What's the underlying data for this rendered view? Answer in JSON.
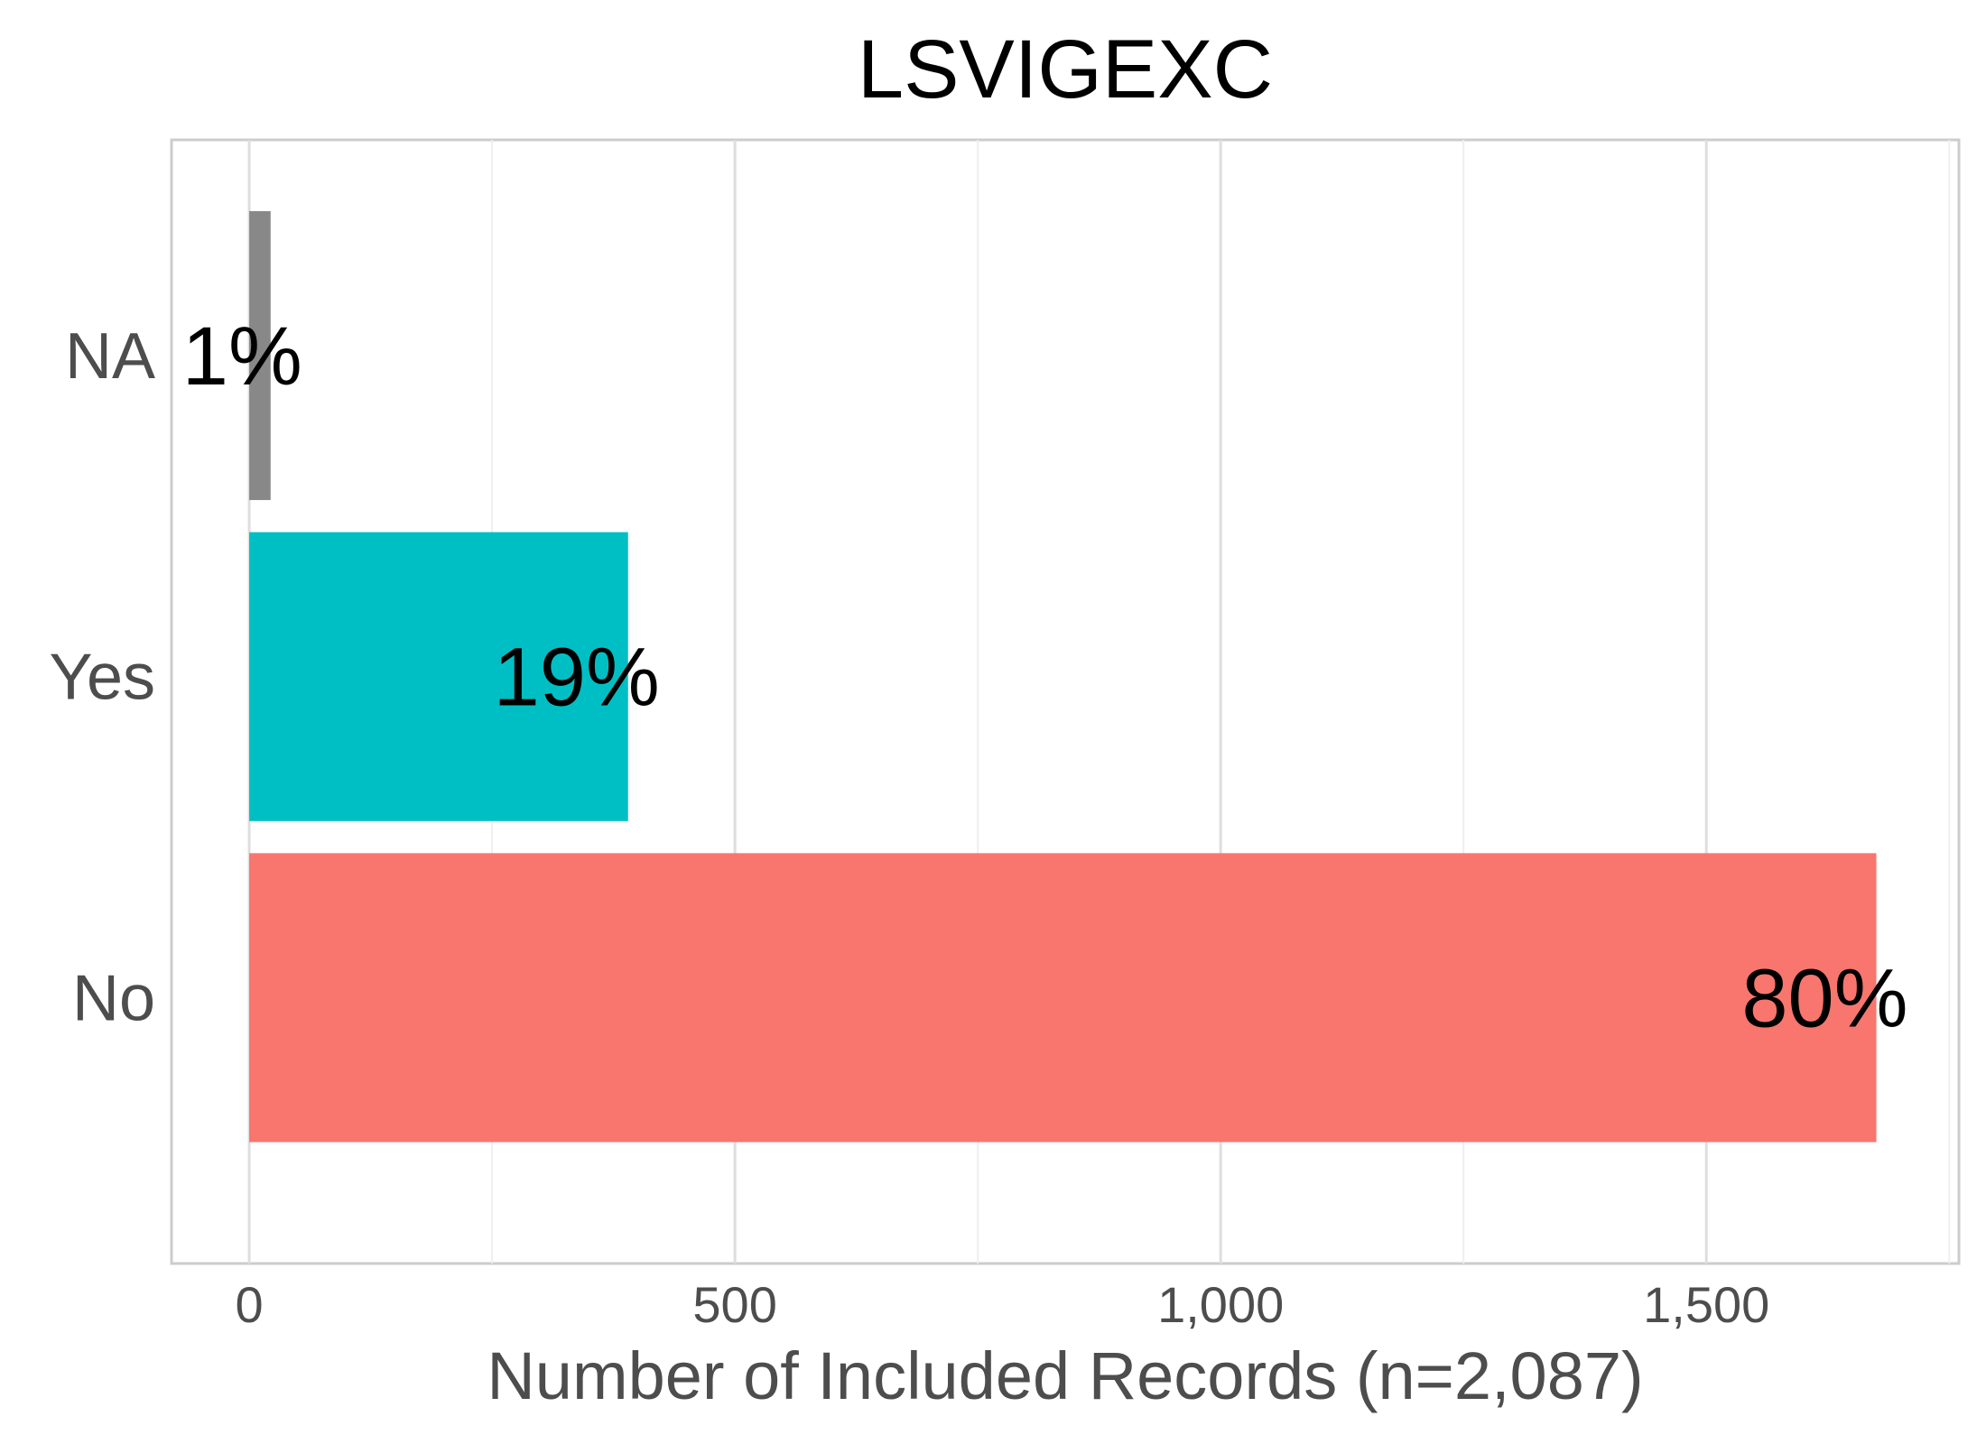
{
  "chart_data": {
    "type": "bar",
    "orientation": "horizontal",
    "title": "LSVIGEXC",
    "xlabel": "Number of Included Records (n=2,087)",
    "ylabel": "",
    "categories": [
      "No",
      "Yes",
      "NA"
    ],
    "values": [
      1675,
      390,
      22
    ],
    "labels": [
      "80%",
      "19%",
      "1%"
    ],
    "colors": [
      "#F8766D",
      "#00BFC4",
      "#888888"
    ],
    "xlim": [
      -80,
      1760
    ],
    "xticks": [
      0,
      500,
      1000,
      1500
    ],
    "xtick_labels": [
      "0",
      "500",
      "1,000",
      "1,500"
    ],
    "grid": true
  }
}
